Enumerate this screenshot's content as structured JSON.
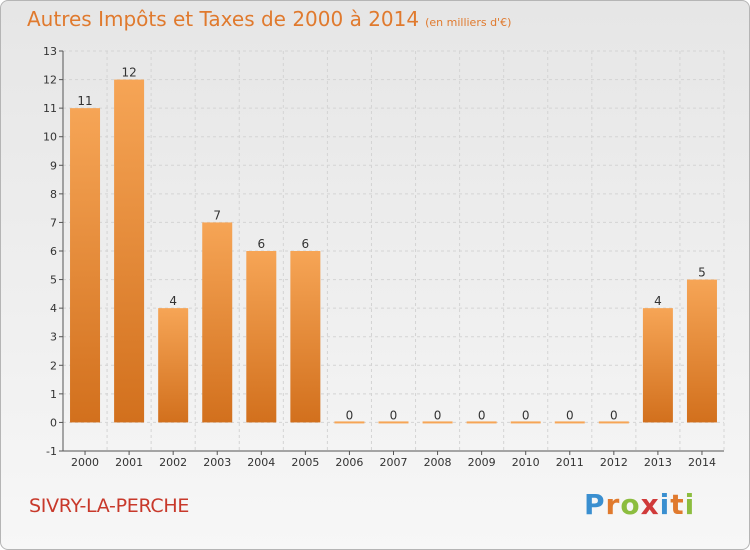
{
  "title": "Autres Impôts et Taxes de 2000 à 2014",
  "unit": "(en milliers d'€)",
  "commune": "SIVRY-LA-PERCHE",
  "logo": {
    "letters": [
      "P",
      "r",
      "o",
      "x",
      "i",
      "t",
      "i"
    ],
    "colors": [
      "#3a8fd0",
      "#e07a2e",
      "#8cbd3f",
      "#d03a3a",
      "#3a8fd0",
      "#e07a2e",
      "#8cbd3f"
    ]
  },
  "colors": {
    "bar_top": "#f6a556",
    "bar_bottom": "#d2701d",
    "title": "#e07a2e",
    "commune": "#c8392b"
  },
  "chart_data": {
    "type": "bar",
    "categories": [
      "2000",
      "2001",
      "2002",
      "2003",
      "2004",
      "2005",
      "2006",
      "2007",
      "2008",
      "2009",
      "2010",
      "2011",
      "2012",
      "2013",
      "2014"
    ],
    "values": [
      11,
      12,
      4,
      7,
      6,
      6,
      0,
      0,
      0,
      0,
      0,
      0,
      0,
      4,
      5
    ],
    "ylim": [
      -1,
      13
    ],
    "yticks": [
      -1,
      0,
      1,
      2,
      3,
      4,
      5,
      6,
      7,
      8,
      9,
      10,
      11,
      12,
      13
    ],
    "grid": true
  }
}
